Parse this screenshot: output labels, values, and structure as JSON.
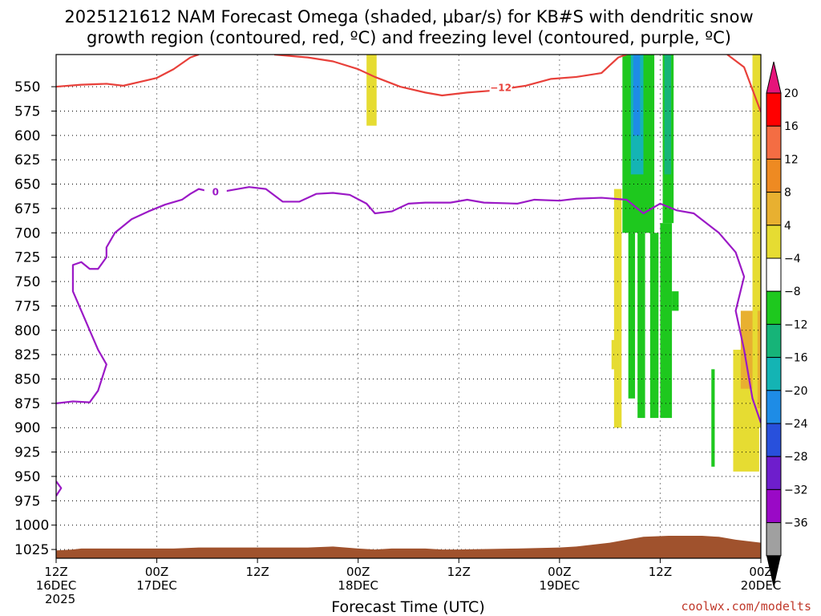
{
  "chart_data": {
    "type": "heatmap",
    "title_lines": [
      "2025121612 NAM Forecast Omega (shaded, μbar/s) for KB#S with dendritic snow",
      "growth region (contoured, red, ºC) and freezing level (contoured, purple, ºC)"
    ],
    "xlabel": "Forecast Time (UTC)",
    "x_ticks": [
      {
        "hour": 0,
        "lines": [
          "12Z",
          "16DEC",
          "2025"
        ]
      },
      {
        "hour": 12,
        "lines": [
          "00Z",
          "17DEC"
        ]
      },
      {
        "hour": 24,
        "lines": [
          "12Z"
        ]
      },
      {
        "hour": 36,
        "lines": [
          "00Z",
          "18DEC"
        ]
      },
      {
        "hour": 48,
        "lines": [
          "12Z"
        ]
      },
      {
        "hour": 60,
        "lines": [
          "00Z",
          "19DEC"
        ]
      },
      {
        "hour": 72,
        "lines": [
          "12Z"
        ]
      },
      {
        "hour": 84,
        "lines": [
          "00Z",
          "20DEC"
        ]
      }
    ],
    "xlim": [
      0,
      84
    ],
    "y_ticks": [
      550,
      575,
      600,
      625,
      650,
      675,
      700,
      725,
      750,
      775,
      800,
      825,
      850,
      875,
      900,
      925,
      950,
      975,
      1000,
      1025
    ],
    "ylim": [
      517,
      1034
    ],
    "grid": true,
    "colorbar": {
      "tick_labels": [
        "20",
        "16",
        "12",
        "8",
        "4",
        "−4",
        "−8",
        "−12",
        "−16",
        "−20",
        "−24",
        "−28",
        "−32",
        "−36"
      ],
      "colors": [
        "#ff0000",
        "#f46d43",
        "#ee8a22",
        "#e8b030",
        "#e6dc32",
        "#ffffff",
        "#1ec81e",
        "#16b478",
        "#14b4b4",
        "#1e8ce6",
        "#2850dc",
        "#6e1ecc",
        "#9a09c6",
        "#a0a0a0"
      ],
      "top_color": "#e6147a",
      "bottom_color": "#000000"
    },
    "shaded_regions": [
      {
        "color": "#e6dc32",
        "x0": 37.0,
        "x1": 38.2,
        "p_top": 517,
        "p_bot": 590
      },
      {
        "color": "#e6dc32",
        "x0": 66.5,
        "x1": 67.4,
        "p_top": 655,
        "p_bot": 900
      },
      {
        "color": "#e6dc32",
        "x0": 66.2,
        "x1": 67.0,
        "p_top": 810,
        "p_bot": 840
      },
      {
        "color": "#1ec81e",
        "x0": 67.5,
        "x1": 71.3,
        "p_top": 517,
        "p_bot": 700
      },
      {
        "color": "#14b4b4",
        "x0": 68.5,
        "x1": 70.0,
        "p_top": 517,
        "p_bot": 640
      },
      {
        "color": "#1e8ce6",
        "x0": 68.8,
        "x1": 69.6,
        "p_top": 517,
        "p_bot": 600
      },
      {
        "color": "#1ec81e",
        "x0": 68.2,
        "x1": 69.0,
        "p_top": 700,
        "p_bot": 870
      },
      {
        "color": "#1ec81e",
        "x0": 69.3,
        "x1": 70.2,
        "p_top": 700,
        "p_bot": 890
      },
      {
        "color": "#1ec81e",
        "x0": 70.8,
        "x1": 71.8,
        "p_top": 700,
        "p_bot": 890
      },
      {
        "color": "#1ec81e",
        "x0": 72.3,
        "x1": 73.6,
        "p_top": 517,
        "p_bot": 690
      },
      {
        "color": "#16b478",
        "x0": 72.5,
        "x1": 73.3,
        "p_top": 517,
        "p_bot": 640
      },
      {
        "color": "#1ec81e",
        "x0": 72.0,
        "x1": 73.4,
        "p_top": 690,
        "p_bot": 890
      },
      {
        "color": "#1ec81e",
        "x0": 73.4,
        "x1": 74.2,
        "p_top": 760,
        "p_bot": 780
      },
      {
        "color": "#1ec81e",
        "x0": 78.1,
        "x1": 78.5,
        "p_top": 840,
        "p_bot": 940
      },
      {
        "color": "#e6dc32",
        "x0": 80.7,
        "x1": 83.8,
        "p_top": 820,
        "p_bot": 945
      },
      {
        "color": "#e8b030",
        "x0": 81.6,
        "x1": 83.3,
        "p_top": 780,
        "p_bot": 860
      },
      {
        "color": "#e6dc32",
        "x0": 83.0,
        "x1": 84.0,
        "p_top": 517,
        "p_bot": 900
      },
      {
        "color": "#e8b030",
        "x0": 83.6,
        "x1": 84.0,
        "p_top": 780,
        "p_bot": 880
      }
    ],
    "contours": [
      {
        "label": "−12",
        "color": "#e8403a",
        "label_at": [
          53.0,
          551
        ],
        "segments": [
          [
            [
              0,
              550
            ],
            [
              3,
              548
            ],
            [
              6,
              547
            ],
            [
              8,
              549
            ],
            [
              10,
              545
            ],
            [
              12,
              541
            ],
            [
              14,
              532
            ],
            [
              16,
              520
            ],
            [
              17,
              517
            ]
          ],
          [
            [
              26,
              517
            ],
            [
              30,
              520
            ],
            [
              33,
              524
            ],
            [
              36,
              532
            ],
            [
              38,
              540
            ],
            [
              41,
              550
            ],
            [
              44,
              556
            ],
            [
              46,
              559
            ],
            [
              49,
              556
            ],
            [
              52,
              554
            ],
            [
              56,
              549
            ],
            [
              59,
              542
            ],
            [
              62,
              540
            ],
            [
              65,
              536
            ],
            [
              67,
              520
            ],
            [
              68,
              517
            ]
          ],
          [
            [
              80,
              517
            ],
            [
              82,
              530
            ],
            [
              84,
              576
            ]
          ]
        ]
      },
      {
        "label": "0",
        "color": "#9b19c6",
        "label_at": [
          19.0,
          658
        ],
        "segments": [
          [
            [
              0,
              875
            ],
            [
              2,
              873
            ],
            [
              4,
              874
            ],
            [
              5,
              862
            ],
            [
              6,
              835
            ],
            [
              5,
              820
            ],
            [
              4,
              800
            ],
            [
              3,
              780
            ],
            [
              2,
              760
            ],
            [
              2,
              733
            ],
            [
              3,
              730
            ],
            [
              4,
              737
            ],
            [
              5,
              737
            ],
            [
              6,
              725
            ],
            [
              6,
              715
            ],
            [
              7,
              700
            ],
            [
              9,
              686
            ],
            [
              11,
              678
            ],
            [
              13,
              671
            ],
            [
              15,
              666
            ],
            [
              16,
              660
            ],
            [
              17,
              655
            ],
            [
              19,
              659
            ],
            [
              21,
              656
            ],
            [
              23,
              653
            ],
            [
              25,
              655
            ],
            [
              27,
              668
            ],
            [
              29,
              668
            ],
            [
              31,
              660
            ],
            [
              33,
              659
            ],
            [
              35,
              661
            ],
            [
              37,
              670
            ],
            [
              38,
              680
            ],
            [
              40,
              678
            ],
            [
              42,
              670
            ],
            [
              44,
              669
            ],
            [
              47,
              669
            ],
            [
              49,
              666
            ],
            [
              51,
              669
            ],
            [
              55,
              670
            ],
            [
              57,
              666
            ],
            [
              60,
              667
            ],
            [
              62,
              665
            ],
            [
              65,
              664
            ],
            [
              68,
              666
            ],
            [
              70,
              680
            ],
            [
              72,
              670
            ],
            [
              74,
              677
            ],
            [
              76,
              680
            ],
            [
              79,
              700
            ],
            [
              81,
              720
            ],
            [
              82,
              745
            ],
            [
              81,
              780
            ],
            [
              82,
              820
            ],
            [
              83,
              870
            ],
            [
              84,
              895
            ]
          ],
          [
            [
              0,
              955
            ],
            [
              0.6,
              962
            ],
            [
              0,
              970
            ]
          ]
        ]
      }
    ],
    "terrain": {
      "color": "#a0522d",
      "surface": [
        [
          0,
          1026
        ],
        [
          2,
          1025
        ],
        [
          3,
          1024
        ],
        [
          10,
          1024
        ],
        [
          14,
          1024
        ],
        [
          17,
          1023
        ],
        [
          23,
          1023
        ],
        [
          30,
          1023
        ],
        [
          33,
          1022
        ],
        [
          36,
          1024
        ],
        [
          38,
          1025
        ],
        [
          40,
          1024
        ],
        [
          44,
          1024
        ],
        [
          46,
          1025
        ],
        [
          48,
          1025
        ],
        [
          55,
          1024
        ],
        [
          60,
          1023
        ],
        [
          62,
          1022
        ],
        [
          64,
          1020
        ],
        [
          66,
          1018
        ],
        [
          68,
          1015
        ],
        [
          70,
          1012
        ],
        [
          73,
          1011
        ],
        [
          77,
          1011
        ],
        [
          79,
          1012
        ],
        [
          81,
          1015
        ],
        [
          84,
          1018
        ]
      ]
    }
  },
  "credit": "coolwx.com/modelts"
}
